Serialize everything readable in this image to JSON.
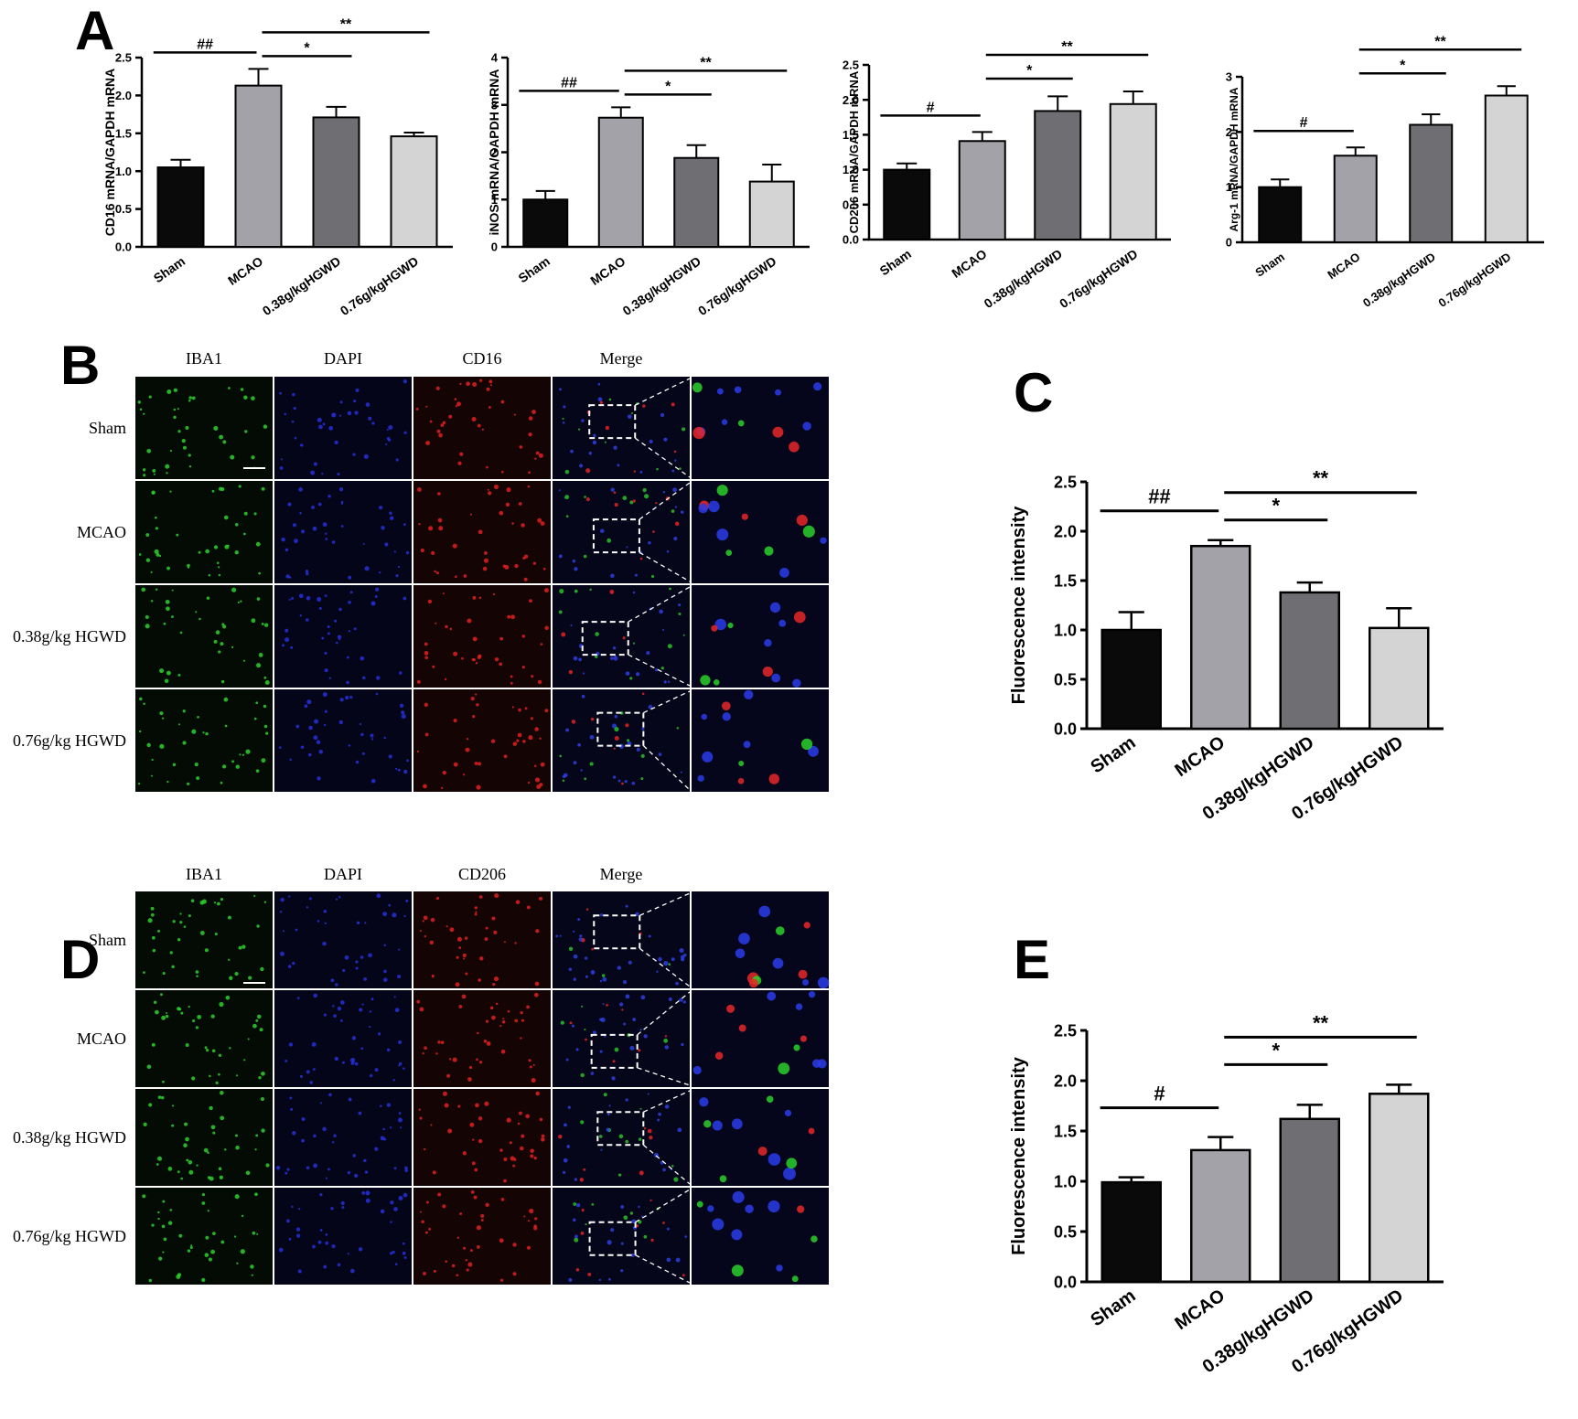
{
  "panel_letters": [
    "A",
    "B",
    "C",
    "D",
    "E"
  ],
  "categories": [
    "Sham",
    "MCAO",
    "0.38g/kgHGWD",
    "0.76g/kgHGWD"
  ],
  "bar_colors": [
    "#0a0a0a",
    "#a2a2a8",
    "#6f6f73",
    "#d4d4d4"
  ],
  "chart_data": [
    {
      "type": "bar",
      "id": "A1",
      "panel": "A",
      "ylabel": "CD16  mRNA/GAPDH mRNA",
      "categories": [
        "Sham",
        "MCAO",
        "0.38g/kgHGWD",
        "0.76g/kgHGWD"
      ],
      "values": [
        1.05,
        2.13,
        1.71,
        1.46
      ],
      "errors": [
        0.1,
        0.22,
        0.14,
        0.05
      ],
      "ylim": [
        0,
        2.5
      ],
      "yticks": [
        "0.0",
        "0.5",
        "1.0",
        "1.5",
        "2.0",
        "2.5"
      ],
      "annotations": [
        {
          "from": 0,
          "to": 1,
          "label": "##"
        },
        {
          "from": 1,
          "to": 2,
          "label": "*"
        },
        {
          "from": 1,
          "to": 3,
          "label": "**"
        }
      ]
    },
    {
      "type": "bar",
      "id": "A2",
      "panel": "A",
      "ylabel": "iNOS mRNA/GAPDH mRNA",
      "categories": [
        "Sham",
        "MCAO",
        "0.38g/kgHGWD",
        "0.76g/kgHGWD"
      ],
      "values": [
        1.0,
        2.73,
        1.88,
        1.38
      ],
      "errors": [
        0.18,
        0.22,
        0.27,
        0.36
      ],
      "ylim": [
        0,
        4
      ],
      "yticks": [
        "0",
        "1",
        "2",
        "3",
        "4"
      ],
      "annotations": [
        {
          "from": 0,
          "to": 1,
          "label": "##"
        },
        {
          "from": 1,
          "to": 2,
          "label": "*"
        },
        {
          "from": 1,
          "to": 3,
          "label": "**"
        }
      ]
    },
    {
      "type": "bar",
      "id": "A3",
      "panel": "A",
      "ylabel": "CD206 mRNA/GAPDH mRNA",
      "categories": [
        "Sham",
        "MCAO",
        "0.38g/kgHGWD",
        "0.76g/kgHGWD"
      ],
      "values": [
        1.0,
        1.41,
        1.84,
        1.94
      ],
      "errors": [
        0.09,
        0.13,
        0.21,
        0.18
      ],
      "ylim": [
        0,
        2.5
      ],
      "yticks": [
        "0.0",
        "0.5",
        "1.0",
        "1.5",
        "2.0",
        "2.5"
      ],
      "annotations": [
        {
          "from": 0,
          "to": 1,
          "label": "#"
        },
        {
          "from": 1,
          "to": 2,
          "label": "*"
        },
        {
          "from": 1,
          "to": 3,
          "label": "**"
        }
      ]
    },
    {
      "type": "bar",
      "id": "A4",
      "panel": "A",
      "ylabel": "Arg-1 mRNA/GAPDH mRNA",
      "categories": [
        "Sham",
        "MCAO",
        "0.38g/kgHGWD",
        "0.76g/kgHGWD"
      ],
      "values": [
        1.0,
        1.57,
        2.13,
        2.66
      ],
      "errors": [
        0.14,
        0.15,
        0.19,
        0.17
      ],
      "ylim": [
        0,
        3
      ],
      "yticks": [
        "0",
        "1",
        "2",
        "3"
      ],
      "annotations": [
        {
          "from": 0,
          "to": 1,
          "label": "#"
        },
        {
          "from": 1,
          "to": 2,
          "label": "*"
        },
        {
          "from": 1,
          "to": 3,
          "label": "**"
        }
      ]
    },
    {
      "type": "bar",
      "id": "C",
      "panel": "C",
      "ylabel": "Fluorescence intensity",
      "categories": [
        "Sham",
        "MCAO",
        "0.38g/kgHGWD",
        "0.76g/kgHGWD"
      ],
      "values": [
        1.0,
        1.85,
        1.38,
        1.02
      ],
      "errors": [
        0.18,
        0.06,
        0.1,
        0.2
      ],
      "ylim": [
        0,
        2.5
      ],
      "yticks": [
        "0.0",
        "0.5",
        "1.0",
        "1.5",
        "2.0",
        "2.5"
      ],
      "annotations": [
        {
          "from": 0,
          "to": 1,
          "label": "##"
        },
        {
          "from": 1,
          "to": 2,
          "label": "*"
        },
        {
          "from": 1,
          "to": 3,
          "label": "**"
        }
      ]
    },
    {
      "type": "bar",
      "id": "E",
      "panel": "E",
      "ylabel": "Fluorescence intensity",
      "categories": [
        "Sham",
        "MCAO",
        "0.38g/kgHGWD",
        "0.76g/kgHGWD"
      ],
      "values": [
        0.99,
        1.31,
        1.62,
        1.87
      ],
      "errors": [
        0.05,
        0.13,
        0.14,
        0.09
      ],
      "ylim": [
        0,
        2.5
      ],
      "yticks": [
        "0.0",
        "0.5",
        "1.0",
        "1.5",
        "2.0",
        "2.5"
      ],
      "annotations": [
        {
          "from": 0,
          "to": 1,
          "label": "#"
        },
        {
          "from": 1,
          "to": 2,
          "label": "*"
        },
        {
          "from": 1,
          "to": 3,
          "label": "**"
        }
      ]
    }
  ],
  "micrographs": [
    {
      "panel": "B",
      "columns": [
        "IBA1",
        "DAPI",
        "CD16",
        "Merge"
      ],
      "rows": [
        "Sham",
        "MCAO",
        "0.38g/kg HGWD",
        "0.76g/kg HGWD"
      ]
    },
    {
      "panel": "D",
      "columns": [
        "IBA1",
        "DAPI",
        "CD206",
        "Merge"
      ],
      "rows": [
        "Sham",
        "MCAO",
        "0.38g/kg HGWD",
        "0.76g/kg HGWD"
      ]
    }
  ]
}
